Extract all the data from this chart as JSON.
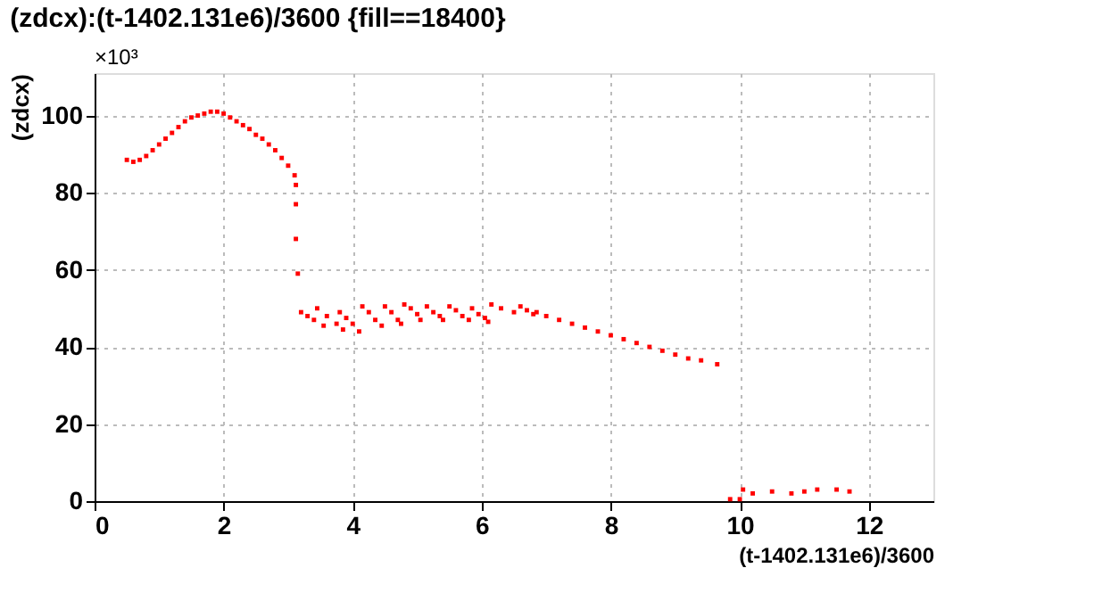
{
  "chart_data": {
    "type": "scatter",
    "title": "(zdcx):(t-1402.131e6)/3600 {fill==18400}",
    "xlabel": "(t-1402.131e6)/3600",
    "ylabel": "(zdcx)",
    "annotations": [
      "×10³"
    ],
    "xlim": [
      0,
      13
    ],
    "ylim": [
      0,
      111
    ],
    "xticks": [
      0,
      2,
      4,
      6,
      8,
      10,
      12
    ],
    "yticks": [
      0,
      20,
      40,
      60,
      80,
      100
    ],
    "grid": true,
    "marker": "square",
    "series": [
      {
        "color": "#ff0000",
        "x": [
          0.5,
          0.6,
          0.7,
          0.8,
          0.9,
          1.0,
          1.1,
          1.2,
          1.3,
          1.4,
          1.5,
          1.6,
          1.7,
          1.8,
          1.9,
          2.0,
          2.1,
          2.2,
          2.3,
          2.4,
          2.5,
          2.6,
          2.7,
          2.8,
          2.9,
          3.0,
          3.1,
          3.12,
          3.12,
          3.12,
          3.15,
          3.2,
          3.3,
          3.4,
          3.55,
          3.45,
          3.6,
          3.75,
          3.85,
          3.8,
          3.9,
          4.0,
          4.1,
          4.15,
          4.25,
          4.35,
          4.45,
          4.5,
          4.6,
          4.7,
          4.75,
          4.8,
          4.9,
          5.0,
          5.05,
          5.15,
          5.25,
          5.35,
          5.4,
          5.5,
          5.6,
          5.7,
          5.8,
          5.85,
          5.95,
          6.05,
          6.1,
          6.15,
          6.3,
          6.5,
          6.6,
          6.7,
          6.8,
          6.85,
          7.0,
          7.2,
          7.4,
          7.6,
          7.8,
          8.0,
          8.2,
          8.4,
          8.6,
          8.8,
          9.0,
          9.2,
          9.4,
          9.65,
          9.85,
          10.0,
          10.05,
          10.2,
          10.5,
          10.8,
          11.0,
          11.2,
          11.5,
          11.7
        ],
        "values": [
          88.5,
          88,
          88.5,
          89.5,
          91,
          92.5,
          94,
          95.5,
          97,
          98.5,
          99.5,
          100,
          100.5,
          101,
          101,
          100.5,
          99.5,
          98.5,
          97.5,
          96.5,
          95,
          94,
          92.5,
          91,
          89,
          87,
          84.5,
          82,
          77,
          68,
          59,
          49,
          48,
          47,
          45.5,
          50,
          48,
          46,
          44.5,
          49,
          47.5,
          46,
          44,
          50.5,
          49,
          47,
          45.5,
          50.5,
          49,
          47,
          46,
          51,
          50,
          48.5,
          47,
          50.5,
          49,
          48,
          47,
          50.5,
          49.5,
          48,
          47,
          50,
          48.5,
          47.5,
          46.5,
          51,
          50,
          49,
          50.5,
          49.5,
          48.5,
          49,
          48,
          47,
          46,
          45,
          44,
          43,
          42,
          41,
          40,
          39,
          38,
          37,
          36.5,
          35.5,
          0.5,
          0.5,
          3,
          2,
          2.5,
          2,
          2.5,
          3,
          3,
          2.5
        ]
      }
    ]
  }
}
